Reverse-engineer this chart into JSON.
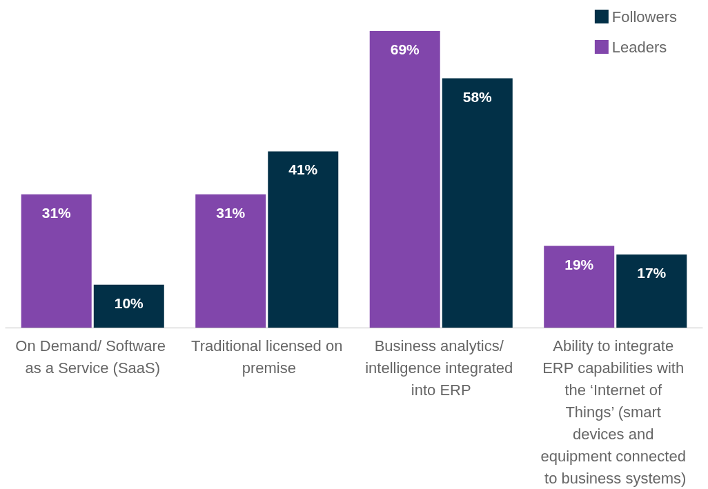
{
  "chart_data": {
    "type": "bar",
    "categories": [
      "On Demand/ Software as a Service (SaaS)",
      "Traditional licensed on premise",
      "Business analytics/ intelligence integrated into ERP",
      "Ability to integrate ERP capabilities with the ‘Internet of Things’ (smart devices and equipment connected to business systems)"
    ],
    "series": [
      {
        "name": "Leaders",
        "color": "#8146ab",
        "values": [
          31,
          31,
          69,
          19
        ],
        "value_labels": [
          "31%",
          "31%",
          "69%",
          "19%"
        ]
      },
      {
        "name": "Followers",
        "color": "#023047",
        "values": [
          10,
          41,
          58,
          17
        ],
        "value_labels": [
          "10%",
          "41%",
          "58%",
          "17%"
        ]
      }
    ],
    "legend": "top right"
  }
}
